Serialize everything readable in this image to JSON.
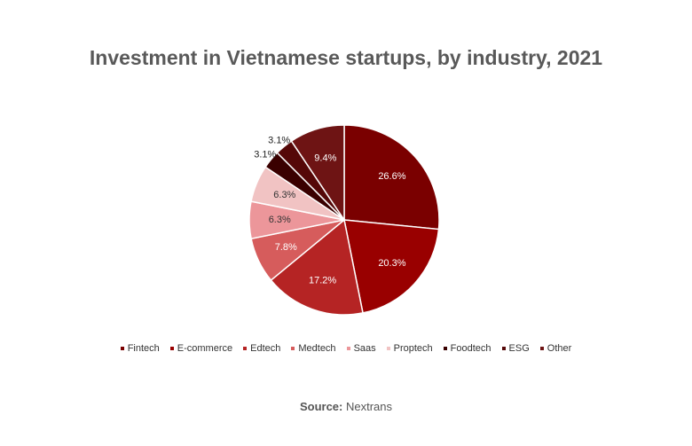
{
  "chart_data": {
    "type": "pie",
    "title": "Investment in Vietnamese startups, by industry, 2021",
    "categories": [
      "Fintech",
      "E-commerce",
      "Edtech",
      "Medtech",
      "Saas",
      "Proptech",
      "Foodtech",
      "ESG",
      "Other"
    ],
    "values": [
      26.6,
      20.3,
      17.2,
      7.8,
      6.3,
      6.3,
      3.1,
      3.1,
      9.4
    ],
    "value_labels": [
      "26.6%",
      "20.3%",
      "17.2%",
      "7.8%",
      "6.3%",
      "6.3%",
      "3.1%",
      "3.1%",
      "9.4%"
    ],
    "colors": [
      "#7a0000",
      "#990000",
      "#b52424",
      "#d65c5c",
      "#ec969a",
      "#f1c3c3",
      "#3a0000",
      "#550808",
      "#6e1414"
    ],
    "legend": "bottom",
    "source_label": "Source:",
    "source": "Nextrans"
  }
}
